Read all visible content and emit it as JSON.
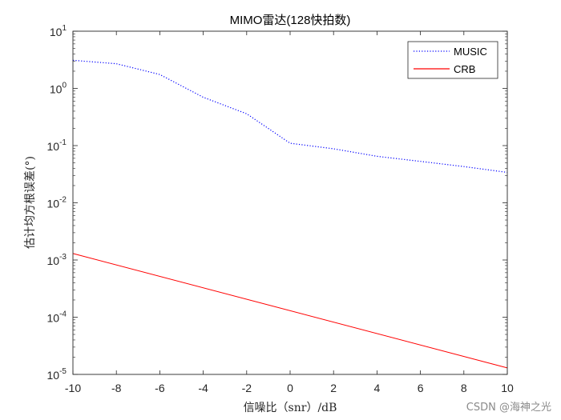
{
  "chart_data": {
    "type": "line",
    "title": "MIMO雷达(128快拍数)",
    "xlabel": "信噪比（snr）/dB",
    "ylabel": "估计均方根误差(°)",
    "x_scale": "linear",
    "y_scale": "log",
    "xlim": [
      -10,
      10
    ],
    "ylim_exponent": [
      -5,
      1
    ],
    "xticks": [
      -10,
      -8,
      -6,
      -4,
      -2,
      0,
      2,
      4,
      6,
      8,
      10
    ],
    "ytick_exponents": [
      -5,
      -4,
      -3,
      -2,
      -1,
      0,
      1
    ],
    "ytick_base": "10",
    "legend_position": "top-right",
    "series": [
      {
        "name": "MUSIC",
        "color": "#0000ff",
        "style": "dotted",
        "x": [
          -10,
          -8,
          -6,
          -4,
          -2,
          0,
          2,
          4,
          6,
          8,
          10
        ],
        "y": [
          3.1,
          2.7,
          1.75,
          0.7,
          0.36,
          0.11,
          0.088,
          0.065,
          0.053,
          0.043,
          0.034
        ]
      },
      {
        "name": "CRB",
        "color": "#ff0000",
        "style": "solid",
        "x": [
          -10,
          10
        ],
        "y": [
          0.0013,
          1.3e-05
        ]
      }
    ]
  },
  "watermark": "CSDN @海神之光"
}
